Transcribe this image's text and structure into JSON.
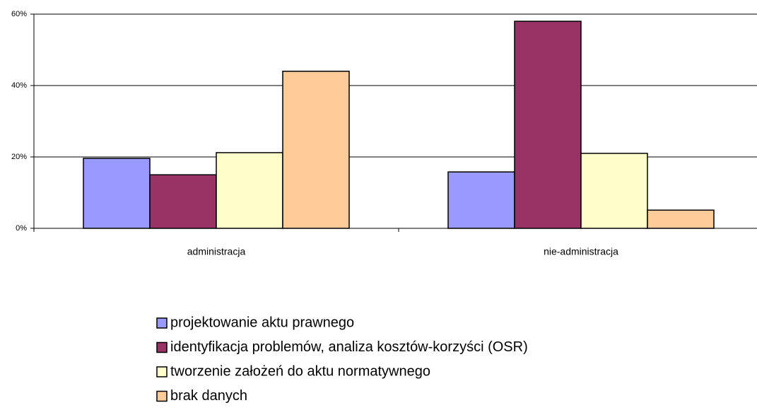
{
  "chart_data": {
    "type": "bar",
    "categories": [
      "administracja",
      "nie-administracja"
    ],
    "series": [
      {
        "name": "projektowanie aktu prawnego",
        "color": "#9999ff",
        "values": [
          19.6,
          15.8
        ]
      },
      {
        "name": "identyfikacja problemów, analiza kosztów-korzyści (OSR)",
        "color": "#993366",
        "values": [
          15.0,
          58.0
        ]
      },
      {
        "name": "tworzenie założeń do aktu normatywnego",
        "color": "#ffffcc",
        "values": [
          21.2,
          21.0
        ]
      },
      {
        "name": "brak danych",
        "color": "#ffcc99",
        "values": [
          44.0,
          5.1
        ]
      }
    ],
    "ylim": [
      0,
      60
    ],
    "yticks": [
      {
        "value": 0,
        "label": "0%"
      },
      {
        "value": 20,
        "label": "20%"
      },
      {
        "value": 40,
        "label": "40%"
      },
      {
        "value": 60,
        "label": "60%"
      }
    ],
    "grid": true,
    "legend": "bottom"
  }
}
